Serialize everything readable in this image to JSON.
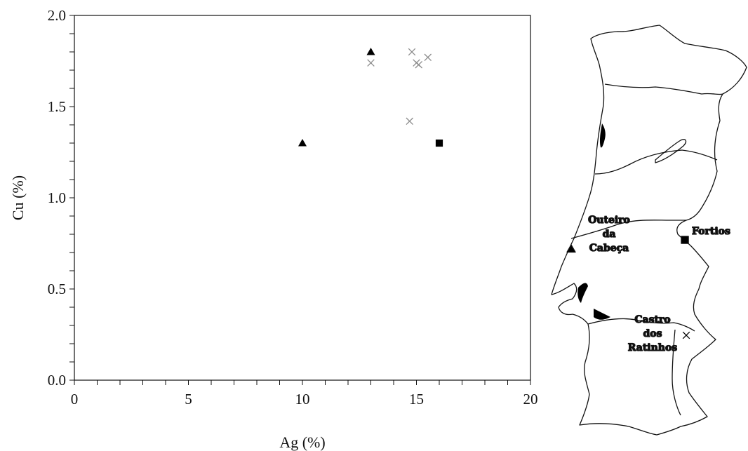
{
  "chart_data": {
    "type": "scatter",
    "xlabel": "Ag (%)",
    "ylabel": "Cu (%)",
    "xlim": [
      0,
      20
    ],
    "ylim": [
      0,
      2.0
    ],
    "x_ticks": [
      "0",
      "5",
      "10",
      "15",
      "20"
    ],
    "y_ticks": [
      "0.0",
      "0.5",
      "1.0",
      "1.5",
      "2.0"
    ],
    "grid": false,
    "series": [
      {
        "name": "Outeiro da Cabeça",
        "marker": "triangle",
        "color": "#000000",
        "points": [
          {
            "x": 10.0,
            "y": 1.3
          },
          {
            "x": 13.0,
            "y": 1.8
          }
        ]
      },
      {
        "name": "Fortios",
        "marker": "square",
        "color": "#000000",
        "points": [
          {
            "x": 16.0,
            "y": 1.3
          }
        ]
      },
      {
        "name": "Castro dos Ratinhos",
        "marker": "x",
        "color": "#8c8c8c",
        "points": [
          {
            "x": 13.0,
            "y": 1.74
          },
          {
            "x": 14.8,
            "y": 1.8
          },
          {
            "x": 15.0,
            "y": 1.74
          },
          {
            "x": 15.1,
            "y": 1.73
          },
          {
            "x": 15.5,
            "y": 1.77
          },
          {
            "x": 14.7,
            "y": 1.42
          }
        ]
      }
    ]
  },
  "map": {
    "labels": {
      "outeiro": [
        "Outeiro",
        "da",
        "Cabeça"
      ],
      "fortios": "Fortios",
      "castro": [
        "Castro",
        "dos",
        "Ratinhos"
      ]
    }
  }
}
